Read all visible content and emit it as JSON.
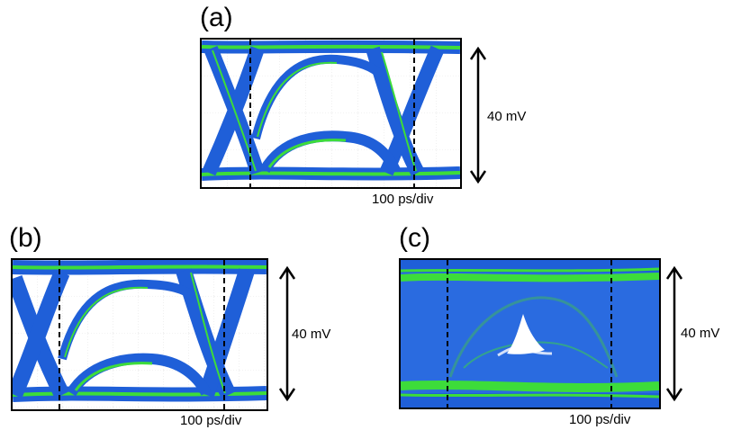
{
  "panels": [
    {
      "label": "(a)",
      "vertical_scale": "40 mV",
      "horizontal_scale": "100 ps/div"
    },
    {
      "label": "(b)",
      "vertical_scale": "40 mV",
      "horizontal_scale": "100 ps/div"
    },
    {
      "label": "(c)",
      "vertical_scale": "40 mV",
      "horizontal_scale": "100 ps/div"
    }
  ],
  "colors": {
    "trace_blue": "#1f5fd8",
    "trace_green": "#3ddc3a",
    "frame": "#000000"
  }
}
